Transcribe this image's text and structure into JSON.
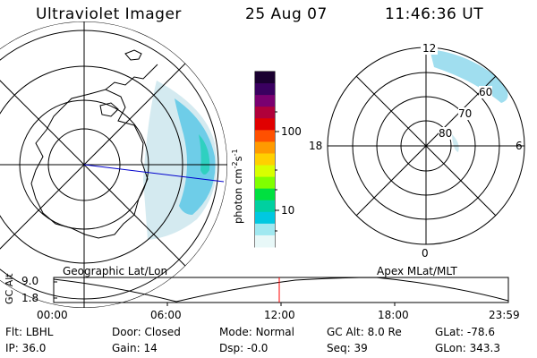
{
  "header": {
    "instrument": "Ultraviolet Imager",
    "date": "25 Aug 07",
    "time": "11:46:36 UT"
  },
  "colorbar": {
    "unit_prefix": "photon cm",
    "unit_exp1": "-2",
    "unit_mid": "s",
    "unit_exp2": "-1",
    "ticks": [
      "100",
      "10"
    ],
    "colors": [
      "#1a0030",
      "#3a0060",
      "#7a0070",
      "#b0003a",
      "#e00000",
      "#ff5000",
      "#ff9a00",
      "#ffd000",
      "#d8ff00",
      "#80ff00",
      "#00e040",
      "#00d0a0",
      "#00c8e0",
      "#a0e8f0",
      "#e8f8f8"
    ]
  },
  "left_map": {
    "title": "Geographic Lat/Lon",
    "image_color": "#40c8e0"
  },
  "right_map": {
    "title": "Apex MLat/MLT",
    "mlt_labels": {
      "top": "12",
      "left": "18",
      "right": "6",
      "bottom": "0"
    },
    "lat_labels": [
      "60",
      "70",
      "80"
    ]
  },
  "altitude_plot": {
    "axis_title": "GC Alt",
    "y_ticks": [
      "9.0",
      "1.8"
    ],
    "x_ticks": [
      "00:00",
      "06:00",
      "12:00",
      "18:00",
      "23:59"
    ],
    "marker_color": "#ff0000"
  },
  "footer": {
    "row1": [
      {
        "label": "Flt:",
        "value": "LBHL"
      },
      {
        "label": "Door:",
        "value": "Closed"
      },
      {
        "label": "Mode:",
        "value": "Normal"
      },
      {
        "label": "GC Alt:",
        "value": "8.0 Re"
      },
      {
        "label": "GLat:",
        "value": "-78.6"
      }
    ],
    "row2": [
      {
        "label": "IP:",
        "value": "36.0"
      },
      {
        "label": "Gain:",
        "value": "14"
      },
      {
        "label": "Dsp:",
        "value": "-0.0"
      },
      {
        "label": "Seq:",
        "value": "39"
      },
      {
        "label": "GLon:",
        "value": "343.3"
      }
    ]
  }
}
